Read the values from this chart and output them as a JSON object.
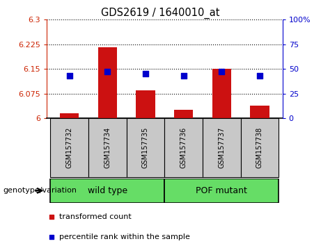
{
  "title": "GDS2619 / 1640010_at",
  "samples": [
    "GSM157732",
    "GSM157734",
    "GSM157735",
    "GSM157736",
    "GSM157737",
    "GSM157738"
  ],
  "red_values": [
    6.015,
    6.215,
    6.085,
    6.025,
    6.15,
    6.038
  ],
  "blue_values_pct": [
    43,
    47,
    45,
    43,
    47,
    43
  ],
  "ylim_left": [
    6.0,
    6.3
  ],
  "ylim_right": [
    0,
    100
  ],
  "yticks_left": [
    6.0,
    6.075,
    6.15,
    6.225,
    6.3
  ],
  "ytick_labels_left": [
    "6",
    "6.075",
    "6.15",
    "6.225",
    "6.3"
  ],
  "yticks_right": [
    0,
    25,
    50,
    75,
    100
  ],
  "ytick_labels_right": [
    "0",
    "25",
    "50",
    "75",
    "100%"
  ],
  "groups": [
    {
      "label": "wild type",
      "indices": [
        0,
        1,
        2
      ],
      "color": "#66dd66"
    },
    {
      "label": "POF mutant",
      "indices": [
        3,
        4,
        5
      ],
      "color": "#66dd66"
    }
  ],
  "bar_color": "#cc1111",
  "dot_color": "#0000cc",
  "bar_width": 0.5,
  "background_color": "#ffffff",
  "plot_bg_color": "#ffffff",
  "tick_bg_color": "#c8c8c8",
  "left_axis_color": "#cc2200",
  "right_axis_color": "#0000cc",
  "legend_red_label": "transformed count",
  "legend_blue_label": "percentile rank within the sample",
  "genotype_label": "genotype/variation"
}
